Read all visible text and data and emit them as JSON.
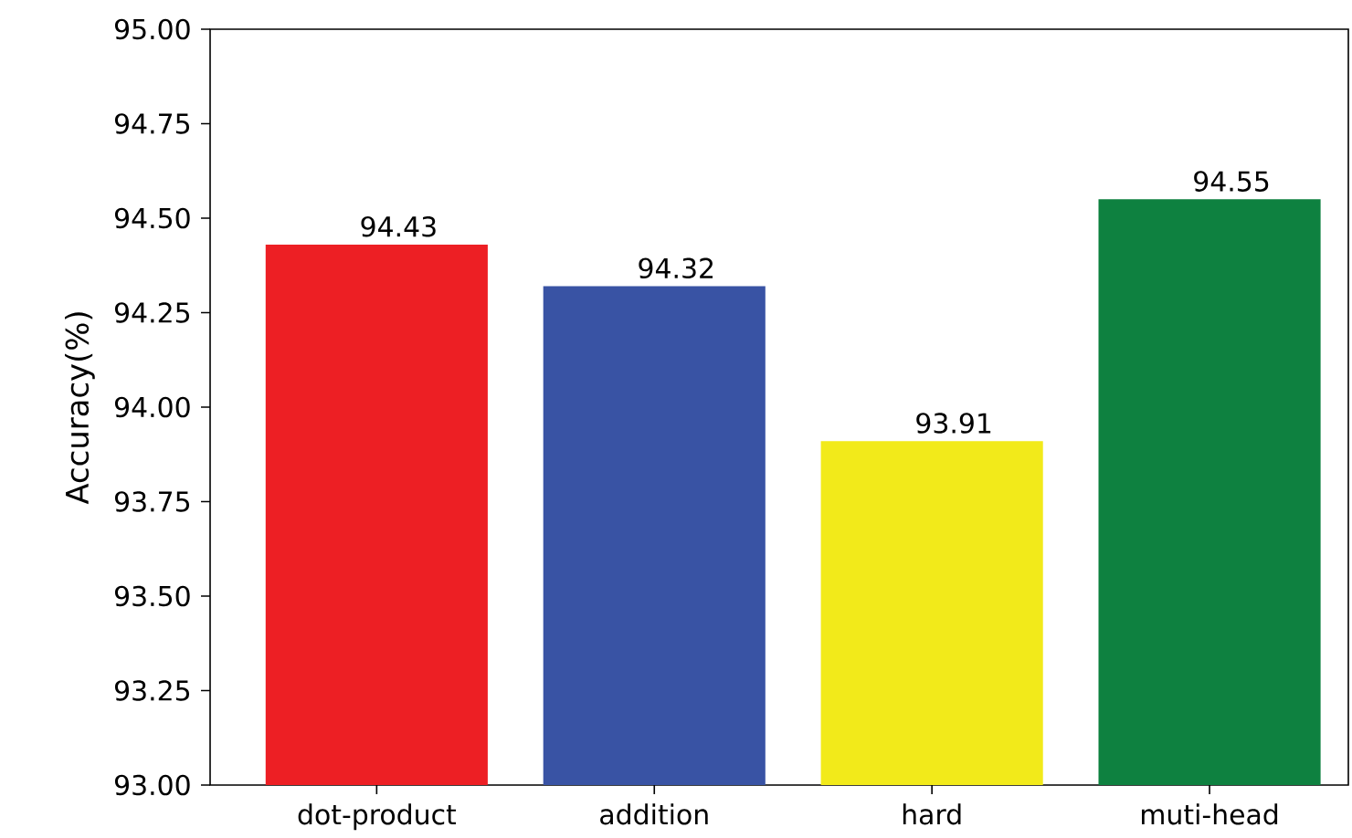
{
  "chart_data": {
    "type": "bar",
    "ylabel": "Accuracy(%)",
    "categories": [
      "dot-product",
      "addition",
      "hard",
      "muti-head"
    ],
    "values": [
      94.43,
      94.32,
      93.91,
      94.55
    ],
    "colors": [
      "#ed1f24",
      "#3953a4",
      "#f2ea1a",
      "#0e8140"
    ],
    "ylim": [
      93,
      95
    ],
    "yticks": [
      {
        "value": 93,
        "label": "93.00"
      },
      {
        "value": 93.25,
        "label": "93.25"
      },
      {
        "value": 93.5,
        "label": "93.50"
      },
      {
        "value": 93.75,
        "label": "93.75"
      },
      {
        "value": 94,
        "label": "94.00"
      },
      {
        "value": 94.25,
        "label": "94.25"
      },
      {
        "value": 94.5,
        "label": "94.50"
      },
      {
        "value": 94.75,
        "label": "94.75"
      },
      {
        "value": 95,
        "label": "95.00"
      }
    ],
    "data_labels": true
  }
}
